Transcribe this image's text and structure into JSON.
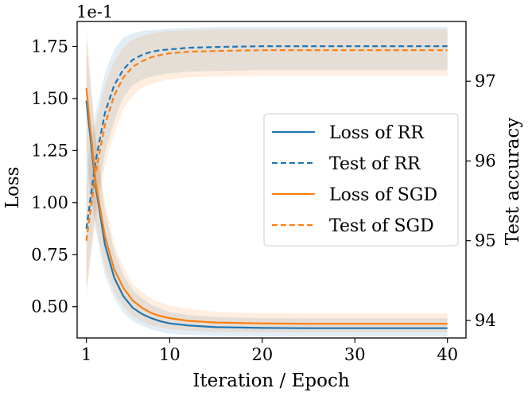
{
  "chart_data": {
    "type": "line",
    "xlabel": "Iteration / Epoch",
    "ylabel": "Loss",
    "y2label": "Test accuracy",
    "offset_text": "1e-1",
    "xlim": [
      0,
      42
    ],
    "ylim": [
      0.35,
      1.87
    ],
    "y2lim": [
      93.78,
      97.75
    ],
    "xticks": [
      1,
      10,
      20,
      30,
      40
    ],
    "yticks": [
      0.5,
      0.75,
      1.0,
      1.25,
      1.5,
      1.75
    ],
    "ytick_labels": [
      "0.50",
      "0.75",
      "1.00",
      "1.25",
      "1.50",
      "1.75"
    ],
    "y2ticks": [
      94,
      95,
      96,
      97
    ],
    "legend_position": "center-right",
    "grid": false,
    "colors": {
      "rr": "#1f77b4",
      "sgd": "#ff7f0e"
    },
    "series": [
      {
        "name": "Loss of RR",
        "axis": "left",
        "style": "solid",
        "color": "#1f77b4",
        "x": [
          1,
          2,
          3,
          4,
          5,
          6,
          7,
          8,
          9,
          10,
          12,
          15,
          20,
          25,
          30,
          35,
          40
        ],
        "y": [
          1.49,
          1.08,
          0.8,
          0.64,
          0.55,
          0.495,
          0.465,
          0.445,
          0.43,
          0.42,
          0.41,
          0.402,
          0.398,
          0.397,
          0.397,
          0.397,
          0.397
        ],
        "band_lower": [
          1.2,
          0.87,
          0.65,
          0.54,
          0.47,
          0.43,
          0.41,
          0.39,
          0.38,
          0.37,
          0.365,
          0.36,
          0.358,
          0.357,
          0.357,
          0.357,
          0.357
        ],
        "band_upper": [
          1.78,
          1.3,
          0.96,
          0.77,
          0.65,
          0.58,
          0.54,
          0.51,
          0.49,
          0.475,
          0.46,
          0.45,
          0.445,
          0.445,
          0.445,
          0.445,
          0.445
        ]
      },
      {
        "name": "Test of RR",
        "axis": "right",
        "style": "dashed",
        "color": "#1f77b4",
        "x": [
          1,
          2,
          3,
          4,
          5,
          6,
          7,
          8,
          9,
          10,
          12,
          15,
          20,
          25,
          30,
          35,
          40
        ],
        "y": [
          95.15,
          96.0,
          96.6,
          96.95,
          97.15,
          97.27,
          97.33,
          97.37,
          97.39,
          97.4,
          97.42,
          97.43,
          97.44,
          97.44,
          97.44,
          97.44,
          97.44
        ],
        "band_lower": [
          94.4,
          95.4,
          96.1,
          96.5,
          96.8,
          96.95,
          97.02,
          97.06,
          97.08,
          97.1,
          97.12,
          97.13,
          97.14,
          97.14,
          97.14,
          97.14,
          97.14
        ],
        "band_upper": [
          95.9,
          96.6,
          97.1,
          97.4,
          97.55,
          97.6,
          97.63,
          97.64,
          97.65,
          97.66,
          97.67,
          97.68,
          97.68,
          97.68,
          97.68,
          97.68,
          97.68
        ]
      },
      {
        "name": "Loss of SGD",
        "axis": "left",
        "style": "solid",
        "color": "#ff7f0e",
        "x": [
          1,
          2,
          3,
          4,
          5,
          6,
          7,
          8,
          9,
          10,
          12,
          15,
          20,
          25,
          30,
          35,
          40
        ],
        "y": [
          1.55,
          1.1,
          0.84,
          0.68,
          0.59,
          0.53,
          0.495,
          0.47,
          0.455,
          0.445,
          0.432,
          0.424,
          0.42,
          0.418,
          0.418,
          0.418,
          0.418
        ],
        "band_lower": [
          1.25,
          0.9,
          0.69,
          0.57,
          0.5,
          0.455,
          0.43,
          0.41,
          0.4,
          0.392,
          0.385,
          0.38,
          0.378,
          0.377,
          0.377,
          0.377,
          0.377
        ],
        "band_upper": [
          1.85,
          1.32,
          1.0,
          0.8,
          0.69,
          0.61,
          0.57,
          0.54,
          0.52,
          0.505,
          0.49,
          0.475,
          0.47,
          0.468,
          0.468,
          0.468,
          0.468
        ]
      },
      {
        "name": "Test of SGD",
        "axis": "right",
        "style": "dashed",
        "color": "#ff7f0e",
        "x": [
          1,
          2,
          3,
          4,
          5,
          6,
          7,
          8,
          9,
          10,
          12,
          15,
          20,
          25,
          30,
          35,
          40
        ],
        "y": [
          95.0,
          95.85,
          96.45,
          96.82,
          97.05,
          97.18,
          97.25,
          97.3,
          97.33,
          97.35,
          97.37,
          97.38,
          97.39,
          97.39,
          97.39,
          97.39,
          97.39
        ],
        "band_lower": [
          94.3,
          95.25,
          95.95,
          96.35,
          96.65,
          96.82,
          96.92,
          96.97,
          97.0,
          97.02,
          97.05,
          97.06,
          97.07,
          97.07,
          97.07,
          97.07,
          97.07
        ],
        "band_upper": [
          95.7,
          96.45,
          96.95,
          97.25,
          97.42,
          97.52,
          97.57,
          97.6,
          97.62,
          97.63,
          97.64,
          97.65,
          97.65,
          97.65,
          97.65,
          97.65,
          97.65
        ]
      }
    ]
  }
}
